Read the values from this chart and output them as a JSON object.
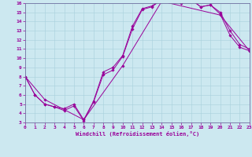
{
  "xlabel": "Windchill (Refroidissement éolien,°C)",
  "bg_color": "#cce8f0",
  "line_color": "#990099",
  "xlim": [
    0,
    23
  ],
  "ylim": [
    3,
    16
  ],
  "xticks": [
    0,
    1,
    2,
    3,
    4,
    5,
    6,
    7,
    8,
    9,
    10,
    11,
    12,
    13,
    14,
    15,
    16,
    17,
    18,
    19,
    20,
    21,
    22,
    23
  ],
  "yticks": [
    3,
    4,
    5,
    6,
    7,
    8,
    9,
    10,
    11,
    12,
    13,
    14,
    15,
    16
  ],
  "series1": [
    [
      0,
      8.0
    ],
    [
      1,
      6.0
    ],
    [
      2,
      5.0
    ],
    [
      3,
      4.7
    ],
    [
      4,
      4.3
    ],
    [
      5,
      4.8
    ],
    [
      6,
      3.2
    ],
    [
      7,
      5.2
    ],
    [
      8,
      8.2
    ],
    [
      9,
      8.7
    ],
    [
      10,
      10.2
    ],
    [
      11,
      13.2
    ],
    [
      12,
      15.3
    ],
    [
      13,
      15.6
    ],
    [
      14,
      16.4
    ],
    [
      15,
      16.4
    ],
    [
      16,
      16.0
    ],
    [
      17,
      16.4
    ],
    [
      18,
      15.6
    ],
    [
      19,
      15.8
    ],
    [
      20,
      14.8
    ],
    [
      21,
      12.5
    ],
    [
      22,
      11.2
    ],
    [
      23,
      10.8
    ]
  ],
  "series2": [
    [
      0,
      8.0
    ],
    [
      1,
      6.0
    ],
    [
      2,
      5.0
    ],
    [
      3,
      4.7
    ],
    [
      4,
      4.5
    ],
    [
      5,
      5.0
    ],
    [
      6,
      3.3
    ],
    [
      7,
      5.3
    ],
    [
      8,
      8.5
    ],
    [
      9,
      9.0
    ],
    [
      10,
      10.3
    ],
    [
      11,
      13.5
    ],
    [
      12,
      15.4
    ],
    [
      13,
      15.7
    ],
    [
      14,
      16.4
    ],
    [
      15,
      16.4
    ],
    [
      16,
      16.0
    ],
    [
      17,
      16.4
    ],
    [
      18,
      15.6
    ],
    [
      19,
      15.8
    ],
    [
      20,
      15.0
    ],
    [
      21,
      13.0
    ],
    [
      22,
      11.5
    ],
    [
      23,
      11.0
    ]
  ],
  "series3": [
    [
      0,
      8.0
    ],
    [
      2,
      5.5
    ],
    [
      6,
      3.3
    ],
    [
      10,
      9.2
    ],
    [
      14,
      16.2
    ],
    [
      20,
      14.7
    ],
    [
      23,
      10.8
    ]
  ]
}
